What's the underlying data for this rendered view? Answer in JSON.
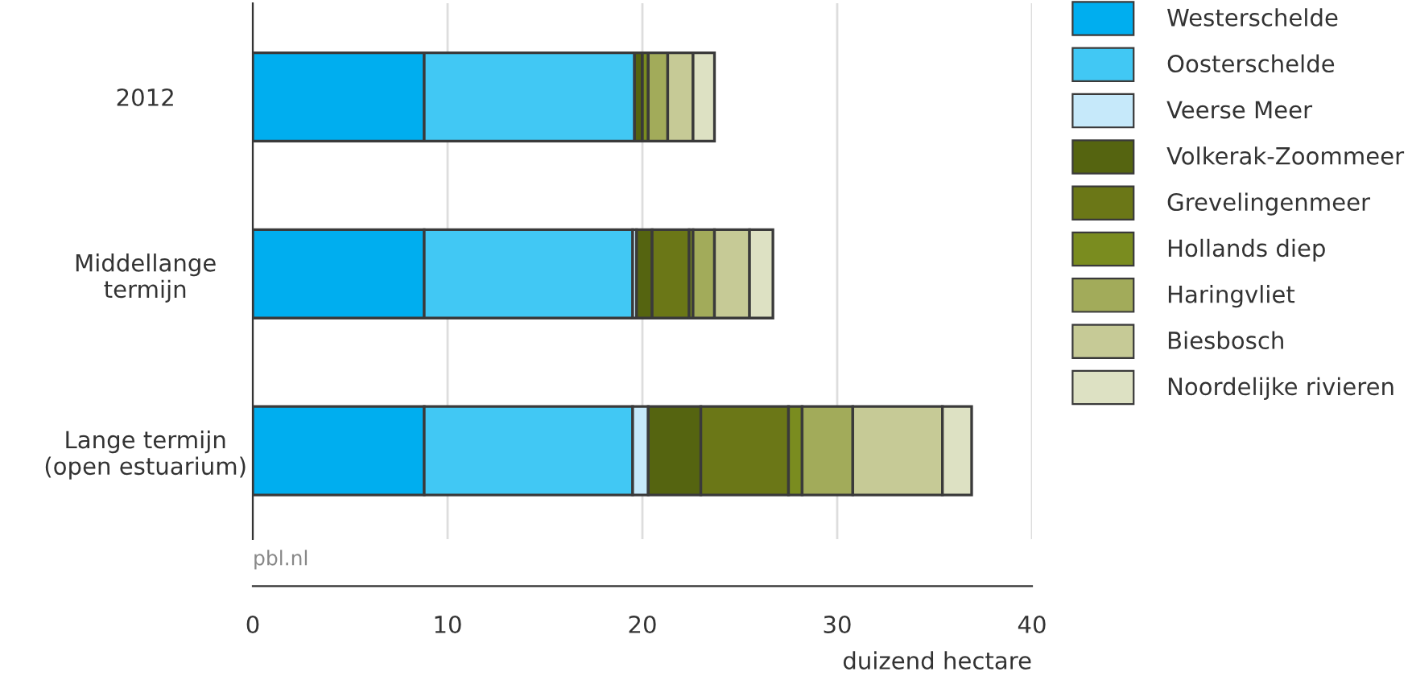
{
  "chart_data": {
    "type": "bar",
    "orientation": "horizontal",
    "stacked": true,
    "categories": [
      "2012",
      "Middellange\ntermijn",
      "Lange termijn\n(open estuarium)"
    ],
    "series": [
      {
        "name": "Westerschelde",
        "color": "#00aeef",
        "values": [
          8.8,
          8.8,
          8.8
        ]
      },
      {
        "name": "Oosterschelde",
        "color": "#41c8f4",
        "values": [
          10.8,
          10.7,
          10.7
        ]
      },
      {
        "name": "Veerse Meer",
        "color": "#c6e9fa",
        "values": [
          0,
          0.2,
          0.8
        ]
      },
      {
        "name": "Volkerak-Zoommeer",
        "color": "#556410",
        "values": [
          0.4,
          0.8,
          2.7
        ]
      },
      {
        "name": "Grevelingenmeer",
        "color": "#6b7717",
        "values": [
          null,
          1.9,
          4.5
        ]
      },
      {
        "name": "Hollands diep",
        "color": "#7a8c1f",
        "values": [
          0.3,
          0.2,
          0.7
        ]
      },
      {
        "name": "Haringvliet",
        "color": "#a2ab5a",
        "values": [
          1.0,
          1.1,
          2.6
        ]
      },
      {
        "name": "Biesbosch",
        "color": "#c6ca96",
        "values": [
          1.3,
          1.8,
          4.6
        ]
      },
      {
        "name": "Noordelijke rivieren",
        "color": "#dde1c3",
        "values": [
          1.1,
          1.2,
          1.5
        ]
      }
    ],
    "xlabel": "duizend hectare",
    "xlim": [
      0,
      40
    ],
    "xticks": [
      0,
      10,
      20,
      30,
      40
    ],
    "grid": "x",
    "legend": "right",
    "annotations": [
      "pbl.nl"
    ]
  }
}
